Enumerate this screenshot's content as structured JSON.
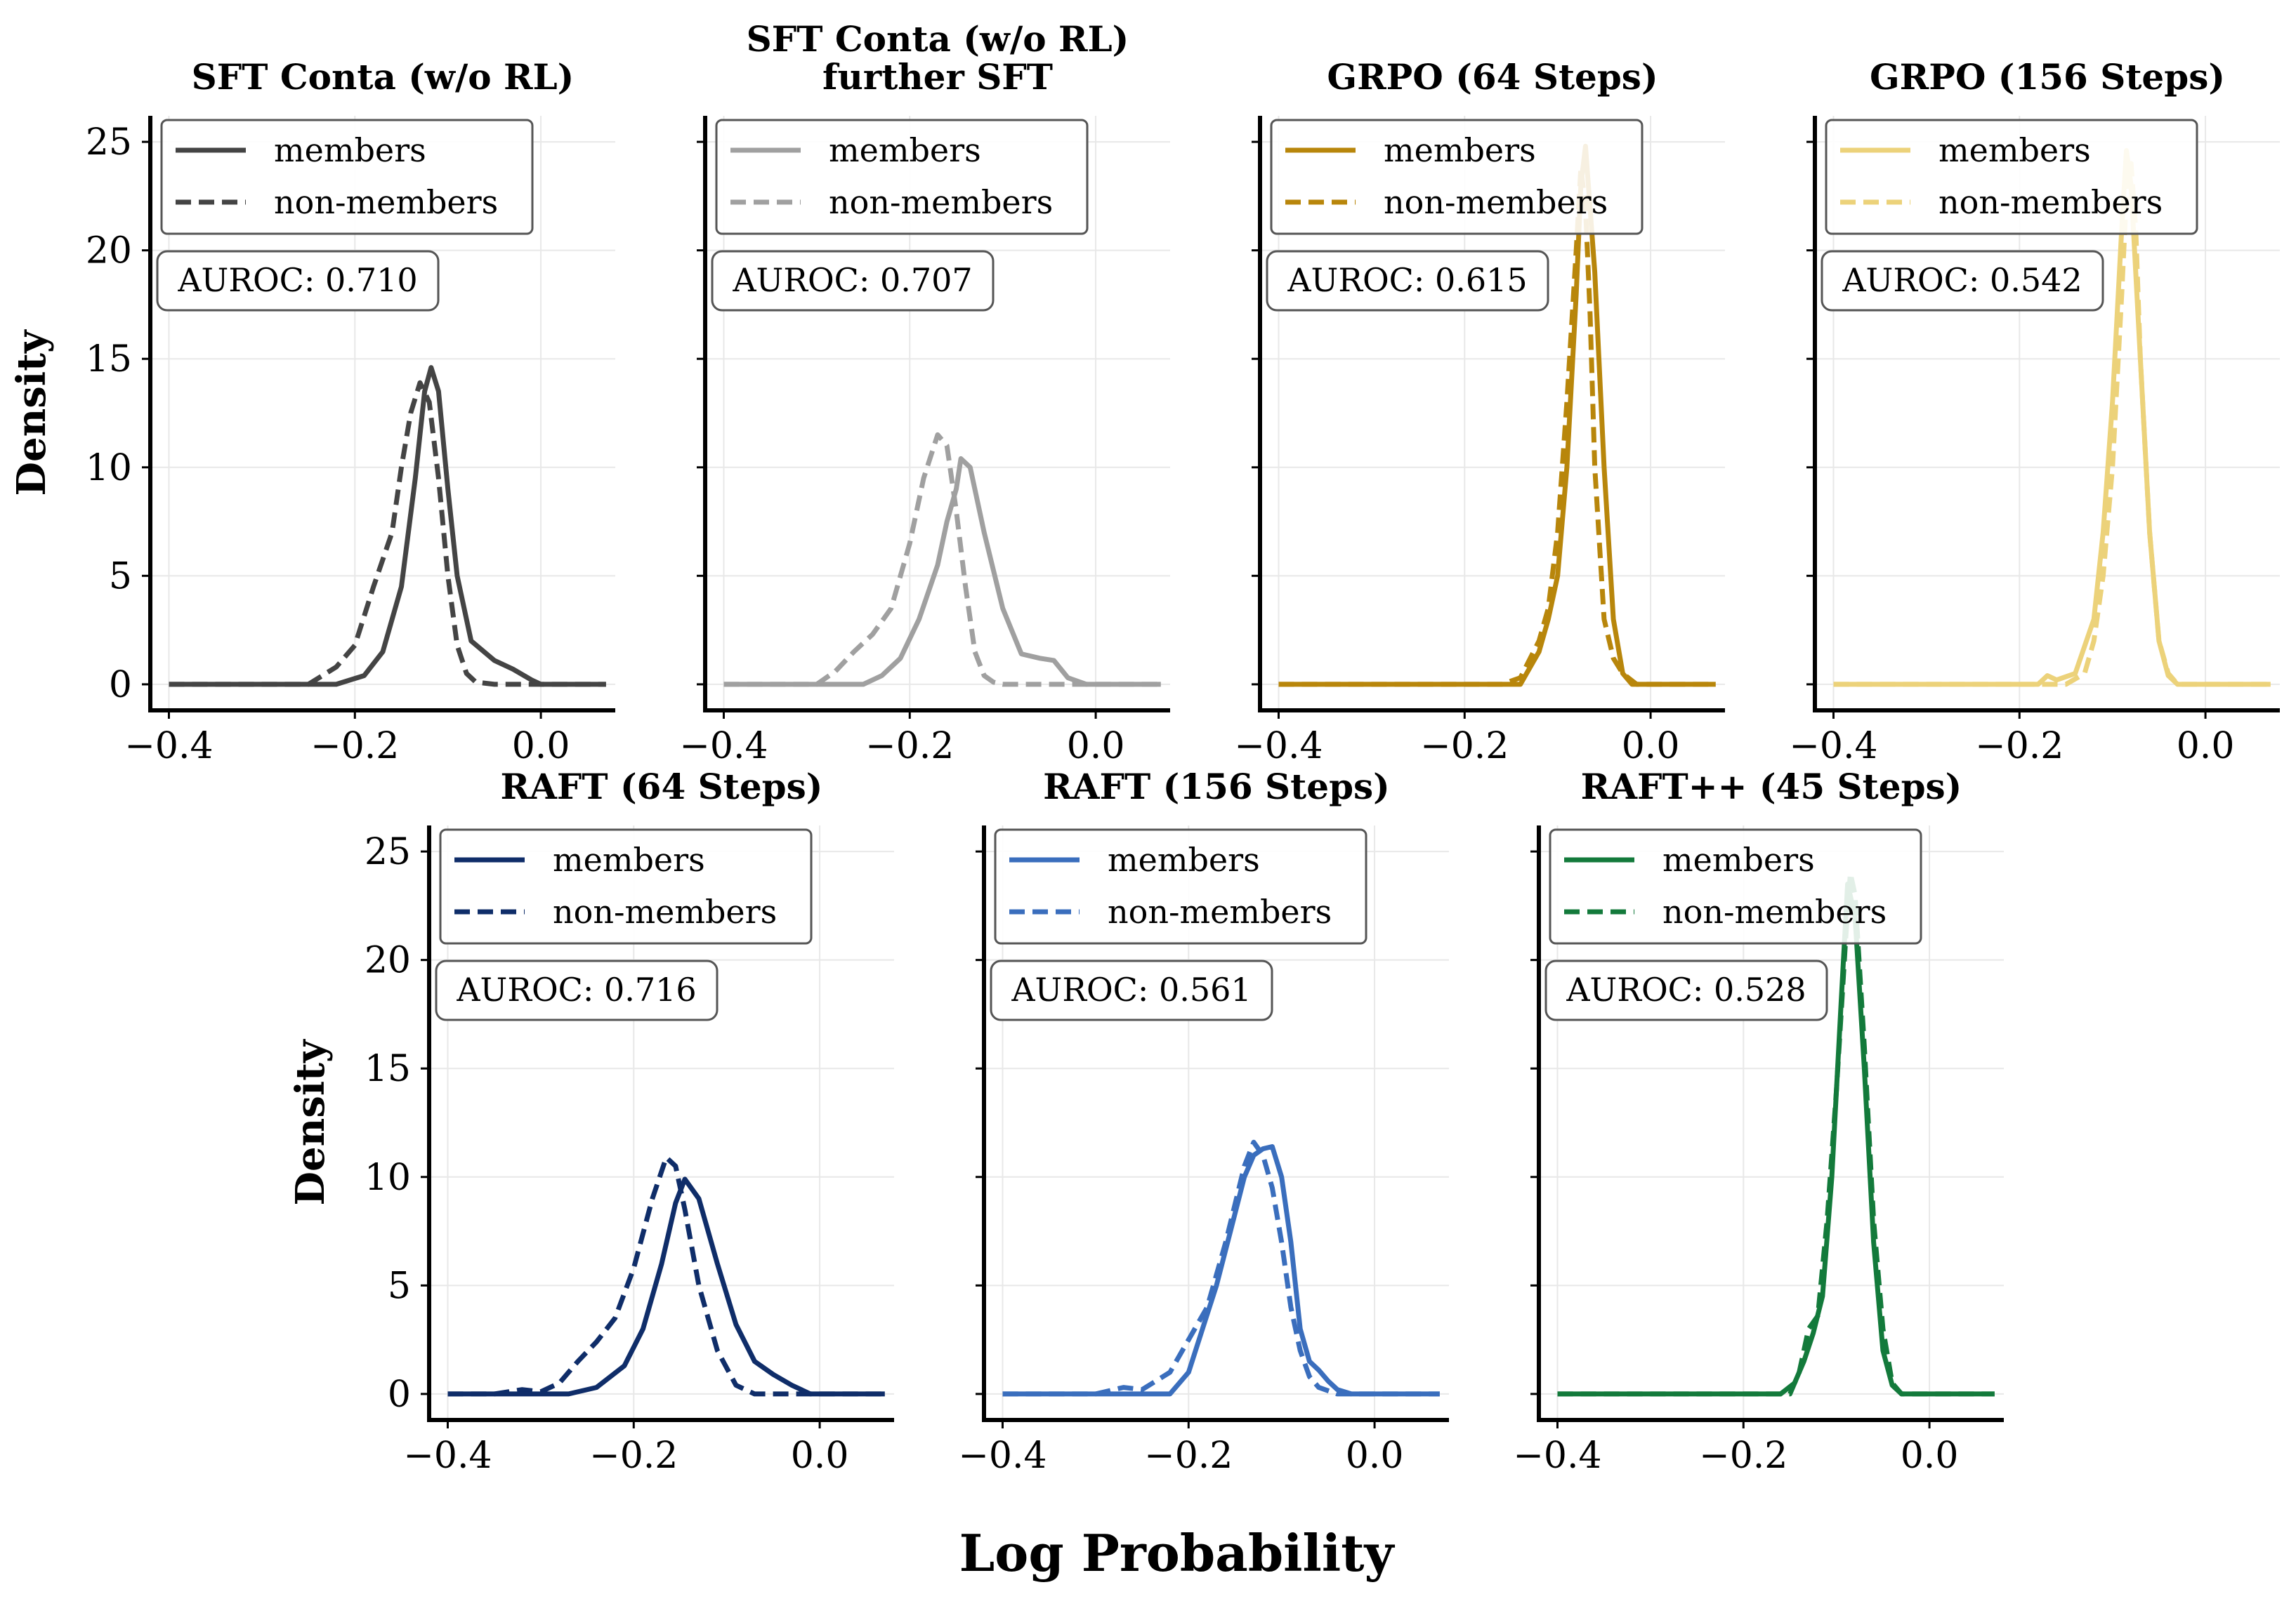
{
  "chart_data": {
    "type": "line",
    "figure_xlabel": "Log Probability",
    "ylabel": "Density",
    "xlim": [
      -0.42,
      0.08
    ],
    "ylim": [
      -1.2,
      26.2
    ],
    "xticks": [
      -0.4,
      -0.2,
      0.0
    ],
    "xtick_labels": [
      "−0.4",
      "−0.2",
      "0.0"
    ],
    "yticks": [
      0,
      5,
      10,
      15,
      20,
      25
    ],
    "ytick_labels": [
      "0",
      "5",
      "10",
      "15",
      "20",
      "25"
    ],
    "legend_labels": [
      "members",
      "non-members"
    ],
    "panels": [
      {
        "title": "SFT Conta (w/o RL)",
        "color": "#444444",
        "auroc_label": "AUROC: 0.710",
        "members": {
          "x": [
            -0.4,
            -0.22,
            -0.19,
            -0.17,
            -0.15,
            -0.135,
            -0.125,
            -0.118,
            -0.11,
            -0.1,
            -0.09,
            -0.075,
            -0.05,
            -0.03,
            -0.01,
            0.0,
            0.07
          ],
          "y": [
            0,
            0,
            0.4,
            1.5,
            4.5,
            9.5,
            13.5,
            14.6,
            13.5,
            9,
            5,
            2,
            1.1,
            0.7,
            0.2,
            0,
            0
          ]
        },
        "non_members": {
          "x": [
            -0.4,
            -0.25,
            -0.22,
            -0.2,
            -0.18,
            -0.16,
            -0.15,
            -0.14,
            -0.13,
            -0.12,
            -0.11,
            -0.1,
            -0.09,
            -0.08,
            -0.07,
            -0.05,
            0.07
          ],
          "y": [
            0,
            0,
            0.8,
            1.8,
            4.5,
            7,
            10,
            12.5,
            13.9,
            13,
            9.5,
            5,
            1.8,
            0.5,
            0.1,
            0,
            0
          ]
        }
      },
      {
        "title": "SFT Conta (w/o RL)",
        "subtitle": "further SFT",
        "color": "#a0a0a0",
        "auroc_label": "AUROC: 0.707",
        "members": {
          "x": [
            -0.4,
            -0.25,
            -0.23,
            -0.21,
            -0.19,
            -0.17,
            -0.16,
            -0.15,
            -0.145,
            -0.135,
            -0.12,
            -0.1,
            -0.08,
            -0.06,
            -0.045,
            -0.03,
            -0.01,
            0.07
          ],
          "y": [
            0,
            0,
            0.4,
            1.2,
            3,
            5.5,
            7.5,
            9,
            10.4,
            10,
            7,
            3.5,
            1.4,
            1.2,
            1.1,
            0.3,
            0,
            0
          ]
        },
        "non_members": {
          "x": [
            -0.4,
            -0.3,
            -0.28,
            -0.26,
            -0.24,
            -0.22,
            -0.2,
            -0.185,
            -0.17,
            -0.16,
            -0.15,
            -0.14,
            -0.13,
            -0.12,
            -0.11,
            -0.1,
            -0.08,
            0.07
          ],
          "y": [
            0,
            0,
            0.6,
            1.5,
            2.3,
            3.5,
            6.5,
            9.5,
            11.5,
            11,
            8,
            4.5,
            1.5,
            0.4,
            0.1,
            0,
            0,
            0
          ]
        }
      },
      {
        "title": "GRPO (64 Steps)",
        "color": "#b8860b",
        "auroc_label": "AUROC: 0.615",
        "members": {
          "x": [
            -0.4,
            -0.14,
            -0.12,
            -0.11,
            -0.1,
            -0.09,
            -0.08,
            -0.075,
            -0.07,
            -0.06,
            -0.05,
            -0.04,
            -0.03,
            -0.02,
            0.07
          ],
          "y": [
            0,
            0,
            1.5,
            3,
            5,
            10,
            18,
            23,
            24.8,
            19,
            10,
            3,
            0.5,
            0,
            0
          ]
        },
        "non_members": {
          "x": [
            -0.4,
            -0.16,
            -0.14,
            -0.12,
            -0.11,
            -0.1,
            -0.09,
            -0.08,
            -0.075,
            -0.07,
            -0.065,
            -0.06,
            -0.05,
            -0.04,
            -0.03,
            -0.015,
            0.07
          ],
          "y": [
            0,
            0,
            0.3,
            2,
            3.5,
            7,
            13,
            20,
            23.8,
            22,
            17,
            10,
            3,
            1.2,
            0.5,
            0,
            0
          ]
        }
      },
      {
        "title": "GRPO (156 Steps)",
        "color": "#ecd27a",
        "auroc_label": "AUROC: 0.542",
        "members": {
          "x": [
            -0.4,
            -0.18,
            -0.17,
            -0.16,
            -0.14,
            -0.12,
            -0.11,
            -0.1,
            -0.09,
            -0.085,
            -0.08,
            -0.07,
            -0.06,
            -0.05,
            -0.04,
            -0.03,
            0.07
          ],
          "y": [
            0,
            0,
            0.4,
            0.2,
            0.5,
            3,
            7,
            13,
            21,
            24.6,
            23,
            15,
            7,
            2,
            0.4,
            0,
            0
          ]
        },
        "non_members": {
          "x": [
            -0.4,
            -0.15,
            -0.13,
            -0.12,
            -0.11,
            -0.1,
            -0.09,
            -0.085,
            -0.08,
            -0.075,
            -0.07,
            -0.06,
            -0.05,
            -0.04,
            -0.03,
            0.07
          ],
          "y": [
            0,
            0,
            0.5,
            2,
            5,
            10,
            18,
            22.5,
            24,
            21,
            15,
            7,
            2,
            0.5,
            0,
            0
          ]
        }
      },
      {
        "title": "RAFT (64 Steps)",
        "color": "#0f2d69",
        "auroc_label": "AUROC: 0.716",
        "members": {
          "x": [
            -0.4,
            -0.27,
            -0.24,
            -0.21,
            -0.19,
            -0.17,
            -0.155,
            -0.145,
            -0.13,
            -0.11,
            -0.09,
            -0.07,
            -0.05,
            -0.03,
            -0.01,
            0.07
          ],
          "y": [
            0,
            0,
            0.3,
            1.3,
            3,
            6,
            8.8,
            9.9,
            9,
            6,
            3.2,
            1.5,
            0.9,
            0.4,
            0,
            0
          ]
        },
        "non_members": {
          "x": [
            -0.4,
            -0.35,
            -0.32,
            -0.3,
            -0.28,
            -0.26,
            -0.24,
            -0.22,
            -0.2,
            -0.18,
            -0.165,
            -0.155,
            -0.145,
            -0.13,
            -0.11,
            -0.09,
            -0.07,
            0.07
          ],
          "y": [
            0,
            0,
            0.2,
            0.1,
            0.5,
            1.5,
            2.4,
            3.5,
            5.8,
            9,
            10.9,
            10.5,
            8.5,
            5,
            2,
            0.4,
            0,
            0
          ]
        }
      },
      {
        "title": "RAFT (156 Steps)",
        "color": "#3a6ebd",
        "auroc_label": "AUROC: 0.561",
        "members": {
          "x": [
            -0.4,
            -0.22,
            -0.2,
            -0.185,
            -0.17,
            -0.155,
            -0.14,
            -0.13,
            -0.12,
            -0.11,
            -0.1,
            -0.09,
            -0.08,
            -0.07,
            -0.06,
            -0.05,
            -0.04,
            -0.025,
            0.07
          ],
          "y": [
            0,
            0,
            1,
            3,
            5,
            7.5,
            10,
            11,
            11.3,
            11.4,
            10,
            7,
            3,
            1.5,
            1.1,
            0.6,
            0.2,
            0,
            0
          ]
        },
        "non_members": {
          "x": [
            -0.4,
            -0.3,
            -0.27,
            -0.25,
            -0.22,
            -0.2,
            -0.18,
            -0.16,
            -0.14,
            -0.13,
            -0.12,
            -0.11,
            -0.1,
            -0.09,
            -0.08,
            -0.07,
            -0.06,
            -0.04,
            0.07
          ],
          "y": [
            0,
            0,
            0.3,
            0.2,
            1,
            2.5,
            4,
            7,
            10.5,
            11.6,
            11,
            9.5,
            7,
            4,
            2,
            0.8,
            0.3,
            0,
            0
          ]
        }
      },
      {
        "title": "RAFT++ (45 Steps)",
        "color": "#137a3b",
        "auroc_label": "AUROC: 0.528",
        "members": {
          "x": [
            -0.4,
            -0.16,
            -0.145,
            -0.135,
            -0.125,
            -0.115,
            -0.105,
            -0.095,
            -0.088,
            -0.08,
            -0.07,
            -0.06,
            -0.05,
            -0.04,
            -0.03,
            0.07
          ],
          "y": [
            0,
            0,
            0.5,
            1.5,
            2.8,
            4.5,
            10,
            18,
            23.5,
            22,
            15,
            7,
            2,
            0.4,
            0,
            0
          ]
        },
        "non_members": {
          "x": [
            -0.4,
            -0.15,
            -0.14,
            -0.13,
            -0.12,
            -0.11,
            -0.1,
            -0.09,
            -0.085,
            -0.08,
            -0.07,
            -0.06,
            -0.05,
            -0.04,
            -0.03,
            0.07
          ],
          "y": [
            0,
            0,
            1,
            3,
            3.6,
            8,
            14,
            21,
            24,
            23,
            16,
            8,
            3,
            0.5,
            0,
            0
          ]
        }
      }
    ]
  }
}
